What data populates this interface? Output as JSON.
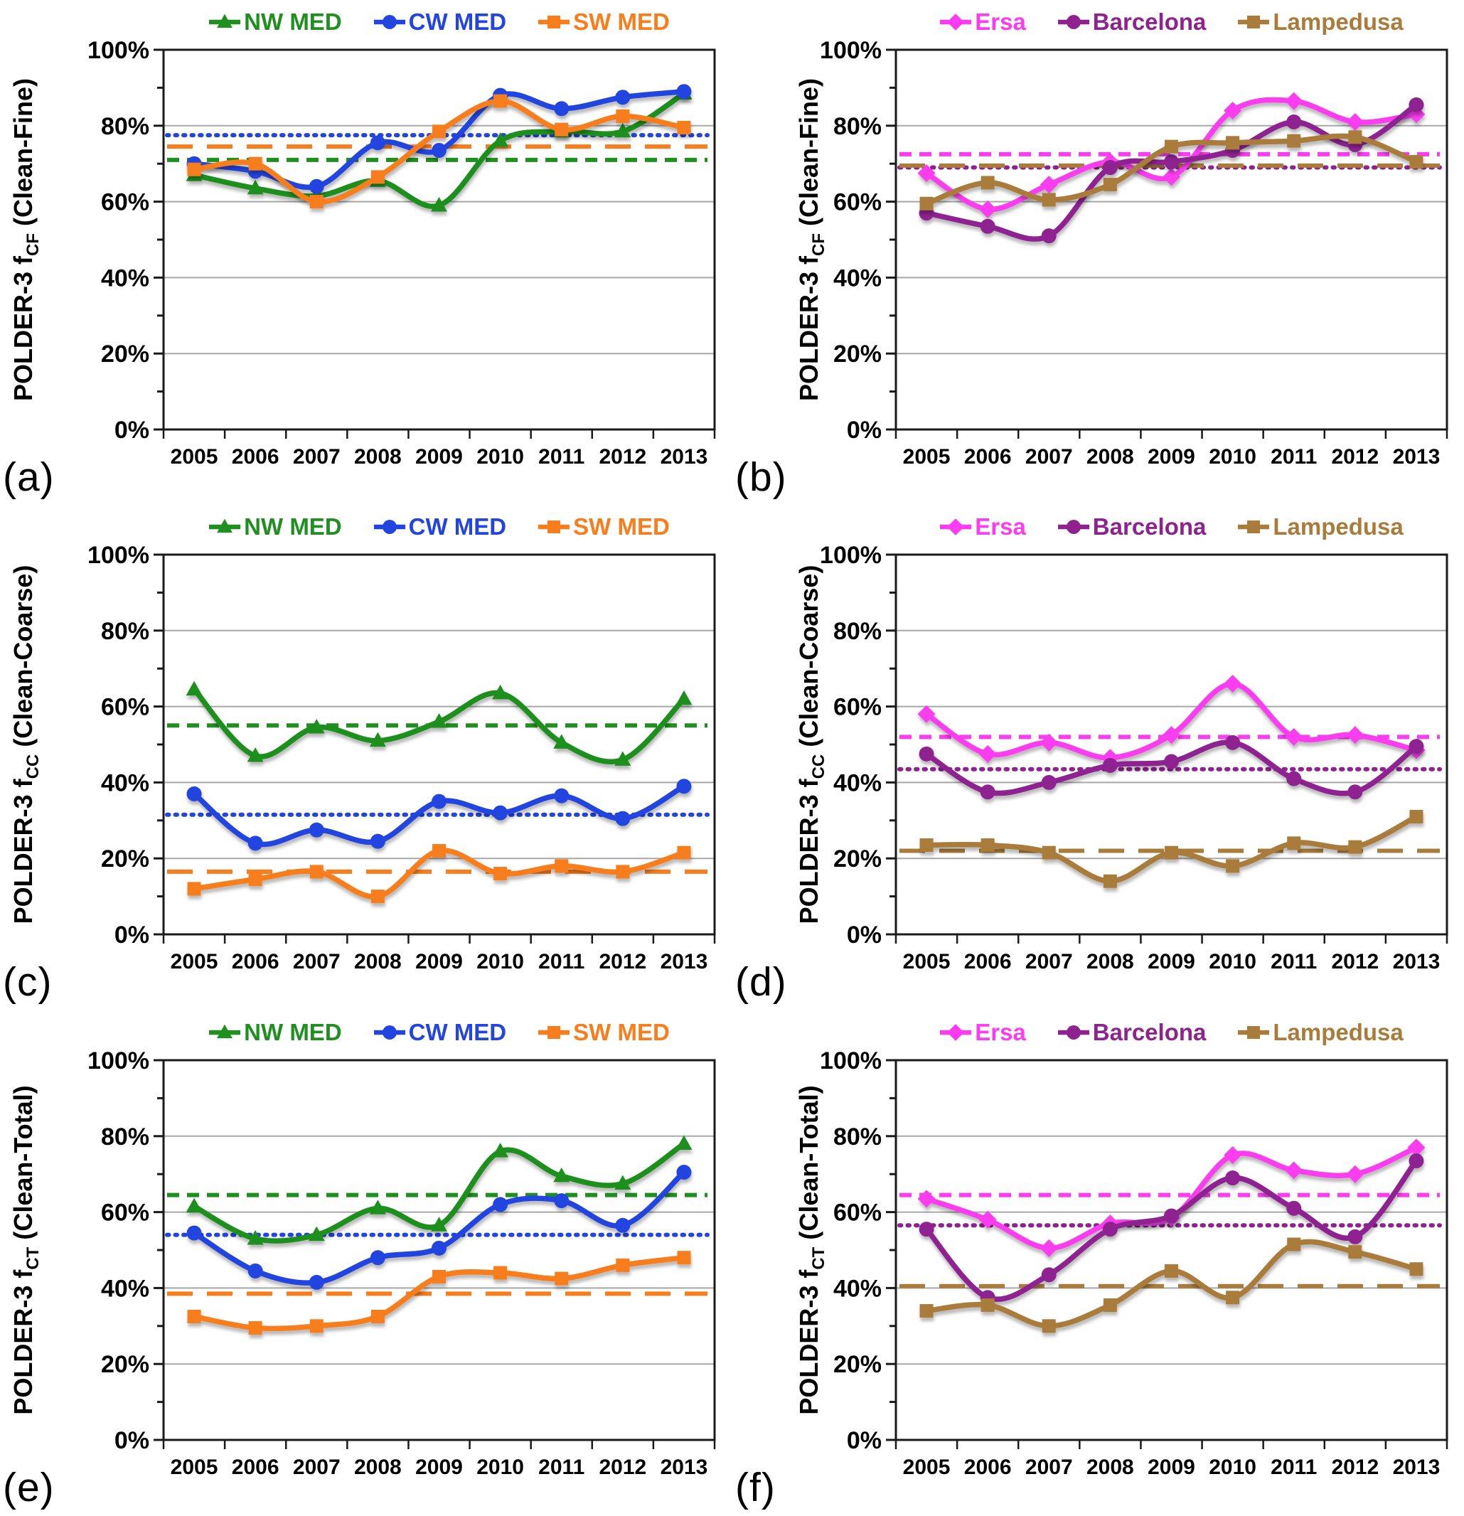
{
  "figure_title": "",
  "axis": {
    "categories": [
      "2005",
      "2006",
      "2007",
      "2008",
      "2009",
      "2010",
      "2011",
      "2012",
      "2013"
    ],
    "yticks": [
      {
        "v": 0,
        "label": "0%"
      },
      {
        "v": 20,
        "label": "20%"
      },
      {
        "v": 40,
        "label": "40%"
      },
      {
        "v": 60,
        "label": "60%"
      },
      {
        "v": 80,
        "label": "80%"
      },
      {
        "v": 100,
        "label": "100%"
      }
    ],
    "ylim": [
      0,
      100
    ],
    "grid": "horizontal-major",
    "legend_position": "top-center"
  },
  "colors": {
    "nw_med": "#1f8f1f",
    "cw_med": "#2244e0",
    "sw_med": "#f87d1c",
    "ersa": "#fb3cf0",
    "barcelona": "#8e2390",
    "lampedusa": "#a97c3b",
    "grid": "#a8a8a8",
    "frame": "#1a1a1a"
  },
  "chart_data": {
    "type": "line",
    "categories": [
      "2005",
      "2006",
      "2007",
      "2008",
      "2009",
      "2010",
      "2011",
      "2012",
      "2013"
    ],
    "panels": [
      {
        "letter": "(a)",
        "col": 0,
        "ylabel": {
          "prefix": "POLDER-3 f",
          "sub": "CF",
          "suffix": " (Clean-Fine)"
        },
        "series": [
          {
            "name": "NW MED",
            "color": "#1f8f1f",
            "marker": "triangle",
            "dash": "med",
            "values": [
              67,
              63.5,
              61.5,
              65.5,
              59,
              76,
              78.5,
              78.5,
              88.5
            ],
            "mean": 71
          },
          {
            "name": "CW MED",
            "color": "#2244e0",
            "marker": "circle",
            "dash": "dot",
            "values": [
              70,
              68,
              64,
              75.5,
              73.5,
              88,
              84.5,
              87.5,
              89
            ],
            "mean": 77.5
          },
          {
            "name": "SW MED",
            "color": "#f87d1c",
            "marker": "square",
            "dash": "long",
            "values": [
              68.5,
              70,
              60,
              66.5,
              78.5,
              86.5,
              79,
              82.5,
              79.5
            ],
            "mean": 74.5
          }
        ]
      },
      {
        "letter": "(b)",
        "col": 1,
        "ylabel": {
          "prefix": "POLDER-3 f",
          "sub": "CF",
          "suffix": " (Clean-Fine)"
        },
        "series": [
          {
            "name": "Ersa",
            "color": "#fb3cf0",
            "marker": "diamond",
            "dash": "med",
            "values": [
              67.5,
              58,
              64.5,
              70.5,
              66.5,
              84,
              86.5,
              81,
              83
            ],
            "mean": 72.5
          },
          {
            "name": "Barcelona",
            "color": "#8e2390",
            "marker": "circle",
            "dash": "dot",
            "values": [
              57,
              53.5,
              51,
              69,
              70.5,
              73.5,
              81,
              75,
              85.5
            ],
            "mean": 69
          },
          {
            "name": "Lampedusa",
            "color": "#a97c3b",
            "marker": "square",
            "dash": "long",
            "values": [
              59.5,
              65,
              60.5,
              64.5,
              74.5,
              75.5,
              76,
              77,
              70.5
            ],
            "mean": 69.5
          }
        ]
      },
      {
        "letter": "(c)",
        "col": 0,
        "ylabel": {
          "prefix": "POLDER-3 f",
          "sub": "CC",
          "suffix": " (Clean-Coarse)"
        },
        "series": [
          {
            "name": "NW MED",
            "color": "#1f8f1f",
            "marker": "triangle",
            "dash": "med",
            "values": [
              64.5,
              47,
              54.5,
              51,
              56,
              63.5,
              50.5,
              46,
              62
            ],
            "mean": 55
          },
          {
            "name": "CW MED",
            "color": "#2244e0",
            "marker": "circle",
            "dash": "dot",
            "values": [
              37,
              24,
              27.5,
              24.5,
              35,
              32,
              36.5,
              30.5,
              39
            ],
            "mean": 31.5
          },
          {
            "name": "SW MED",
            "color": "#f87d1c",
            "marker": "square",
            "dash": "long",
            "values": [
              12,
              14.5,
              16.5,
              10,
              22,
              16,
              18,
              16.5,
              21.5
            ],
            "mean": 16.5
          }
        ]
      },
      {
        "letter": "(d)",
        "col": 1,
        "ylabel": {
          "prefix": "POLDER-3 f",
          "sub": "CC",
          "suffix": " (Clean-Coarse)"
        },
        "series": [
          {
            "name": "Ersa",
            "color": "#fb3cf0",
            "marker": "diamond",
            "dash": "med",
            "values": [
              58,
              47.5,
              50.5,
              46.5,
              52.5,
              66,
              52,
              52.5,
              48.5
            ],
            "mean": 52
          },
          {
            "name": "Barcelona",
            "color": "#8e2390",
            "marker": "circle",
            "dash": "dot",
            "values": [
              47.5,
              37.5,
              40,
              44.5,
              45.5,
              50.5,
              41,
              37.5,
              49.5
            ],
            "mean": 43.5
          },
          {
            "name": "Lampedusa",
            "color": "#a97c3b",
            "marker": "square",
            "dash": "long",
            "values": [
              23.5,
              23.5,
              21.5,
              14,
              21.5,
              18,
              24,
              23,
              31
            ],
            "mean": 22
          }
        ]
      },
      {
        "letter": "(e)",
        "col": 0,
        "ylabel": {
          "prefix": "POLDER-3 f",
          "sub": "CT",
          "suffix": " (Clean-Total)"
        },
        "series": [
          {
            "name": "NW MED",
            "color": "#1f8f1f",
            "marker": "triangle",
            "dash": "med",
            "values": [
              61.5,
              53,
              54,
              61,
              56.5,
              76,
              69.5,
              67.5,
              78
            ],
            "mean": 64.5
          },
          {
            "name": "CW MED",
            "color": "#2244e0",
            "marker": "circle",
            "dash": "dot",
            "values": [
              54.5,
              44.5,
              41.5,
              48,
              50.5,
              62,
              63,
              56.5,
              70.5
            ],
            "mean": 54
          },
          {
            "name": "SW MED",
            "color": "#f87d1c",
            "marker": "square",
            "dash": "long",
            "values": [
              32.5,
              29.5,
              30,
              32.5,
              43,
              44,
              42.5,
              46,
              48
            ],
            "mean": 38.5
          }
        ]
      },
      {
        "letter": "(f)",
        "col": 1,
        "ylabel": {
          "prefix": "POLDER-3 f",
          "sub": "CT",
          "suffix": " (Clean-Total)"
        },
        "series": [
          {
            "name": "Ersa",
            "color": "#fb3cf0",
            "marker": "diamond",
            "dash": "med",
            "values": [
              63.5,
              58,
              50.5,
              57,
              58.5,
              75,
              71,
              70,
              77
            ],
            "mean": 64.5
          },
          {
            "name": "Barcelona",
            "color": "#8e2390",
            "marker": "circle",
            "dash": "dot",
            "values": [
              55.5,
              37.5,
              43.5,
              55.5,
              59,
              69,
              61,
              53.5,
              73.5
            ],
            "mean": 56.5
          },
          {
            "name": "Lampedusa",
            "color": "#a97c3b",
            "marker": "square",
            "dash": "long",
            "values": [
              34,
              35.5,
              30,
              35.5,
              44.5,
              37.5,
              51.5,
              49.5,
              45
            ],
            "mean": 40.5
          }
        ]
      }
    ]
  }
}
